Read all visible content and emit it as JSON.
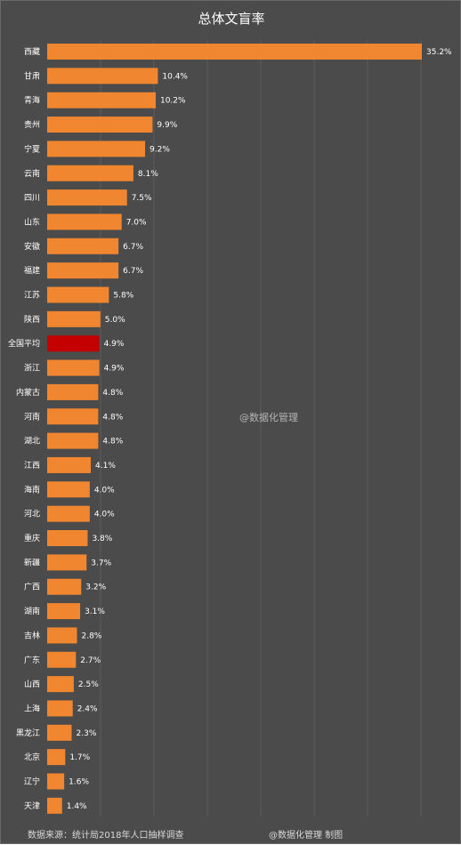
{
  "chart_data": {
    "type": "bar",
    "orientation": "horizontal",
    "title": "总体文盲率",
    "categories": [
      "西藏",
      "甘肃",
      "青海",
      "贵州",
      "宁夏",
      "云南",
      "四川",
      "山东",
      "安徽",
      "福建",
      "江苏",
      "陕西",
      "全国平均",
      "浙江",
      "内蒙古",
      "河南",
      "湖北",
      "江西",
      "海南",
      "河北",
      "重庆",
      "新疆",
      "广西",
      "湖南",
      "吉林",
      "广东",
      "山西",
      "上海",
      "黑龙江",
      "北京",
      "辽宁",
      "天津"
    ],
    "values": [
      35.2,
      10.4,
      10.2,
      9.9,
      9.2,
      8.1,
      7.5,
      7.0,
      6.7,
      6.7,
      5.8,
      5.0,
      4.9,
      4.9,
      4.8,
      4.8,
      4.8,
      4.1,
      4.0,
      4.0,
      3.8,
      3.7,
      3.2,
      3.1,
      2.8,
      2.7,
      2.5,
      2.4,
      2.3,
      1.7,
      1.6,
      1.4
    ],
    "data_labels": [
      "35.2%",
      "10.4%",
      "10.2%",
      "9.9%",
      "9.2%",
      "8.1%",
      "7.5%",
      "7.0%",
      "6.7%",
      "6.7%",
      "5.8%",
      "5.0%",
      "4.9%",
      "4.9%",
      "4.8%",
      "4.8%",
      "4.8%",
      "4.1%",
      "4.0%",
      "4.0%",
      "3.8%",
      "3.7%",
      "3.2%",
      "3.1%",
      "2.8%",
      "2.7%",
      "2.5%",
      "2.4%",
      "2.3%",
      "1.7%",
      "1.6%",
      "1.4%"
    ],
    "highlight_category": "全国平均",
    "xlim": [
      0,
      35.2
    ],
    "grid": true,
    "legend": "none",
    "colors": {
      "bar": "#f0862f",
      "highlight": "#c40000",
      "background": "#4b4b4b",
      "grid": "#5c5c5c",
      "text": "#ffffff"
    }
  },
  "watermark": "@数据化管理",
  "footer": {
    "source": "数据来源：统计局2018年人口抽样调查",
    "credit": "@数据化管理  制图"
  }
}
